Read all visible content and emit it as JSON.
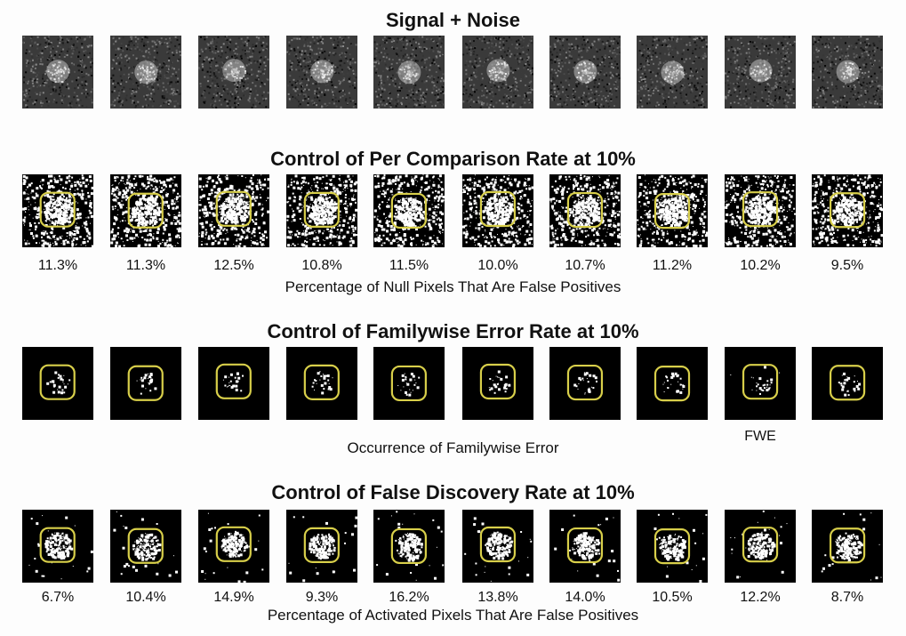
{
  "sections": [
    {
      "id": "signal",
      "title": "Signal + Noise"
    },
    {
      "id": "pcr",
      "title": "Control of Per Comparison Rate at 10%",
      "caption": "Percentage of Null Pixels That Are False Positives",
      "values": [
        "11.3%",
        "11.3%",
        "12.5%",
        "10.8%",
        "11.5%",
        "10.0%",
        "10.7%",
        "11.2%",
        "10.2%",
        "9.5%"
      ]
    },
    {
      "id": "fwe",
      "title": "Control of Familywise Error Rate at 10%",
      "caption": "Occurrence of Familywise Error",
      "marker": "FWE"
    },
    {
      "id": "fdr",
      "title": "Control of False Discovery Rate at 10%",
      "caption": "Percentage of Activated Pixels That Are False Positives",
      "values": [
        "6.7%",
        "10.4%",
        "14.9%",
        "9.3%",
        "16.2%",
        "13.8%",
        "14.0%",
        "10.5%",
        "12.2%",
        "8.7%"
      ]
    }
  ],
  "colors": {
    "outline": "#d8cf4a",
    "background": "#fdfdfd",
    "noise_dark": "#2a2a2a",
    "signal_light": "#bdbdbd"
  }
}
